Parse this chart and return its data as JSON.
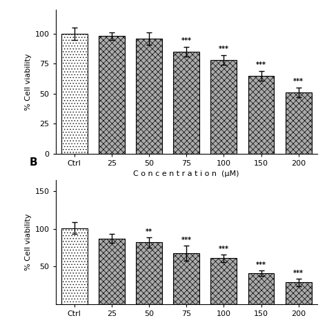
{
  "panel_A": {
    "categories": [
      "Ctrl",
      "25",
      "50",
      "75",
      "100",
      "150",
      "200"
    ],
    "values": [
      100,
      98,
      96,
      85,
      78,
      65,
      51
    ],
    "errors": [
      5,
      3,
      5,
      4,
      4,
      4,
      4
    ],
    "significance": [
      "",
      "",
      "",
      "***",
      "***",
      "***",
      "***"
    ],
    "ylabel": "% Cell viability",
    "xlabel": "C o n c e n t r a t i o n  (µM)",
    "ylim": [
      0,
      120
    ],
    "yticks": [
      0,
      25,
      50,
      75,
      100
    ],
    "bar_color_ctrl": "#ffffff",
    "bar_color_rest": "#aaaaaa",
    "hatch_ctrl": "....",
    "hatch_rest": "xxxx"
  },
  "panel_B": {
    "categories": [
      "Ctrl",
      "25",
      "50",
      "75",
      "100",
      "150",
      "200"
    ],
    "values": [
      101,
      87,
      82,
      68,
      61,
      41,
      29
    ],
    "errors": [
      8,
      6,
      7,
      10,
      5,
      4,
      5
    ],
    "significance": [
      "",
      "",
      "**",
      "***",
      "***",
      "***",
      "***"
    ],
    "ylabel": "% Cell viability",
    "xlabel": "",
    "ylim": [
      0,
      165
    ],
    "yticks": [
      50,
      100,
      150
    ],
    "bar_color_ctrl": "#ffffff",
    "bar_color_rest": "#aaaaaa",
    "hatch_ctrl": "....",
    "hatch_rest": "xxxx",
    "label": "B"
  }
}
